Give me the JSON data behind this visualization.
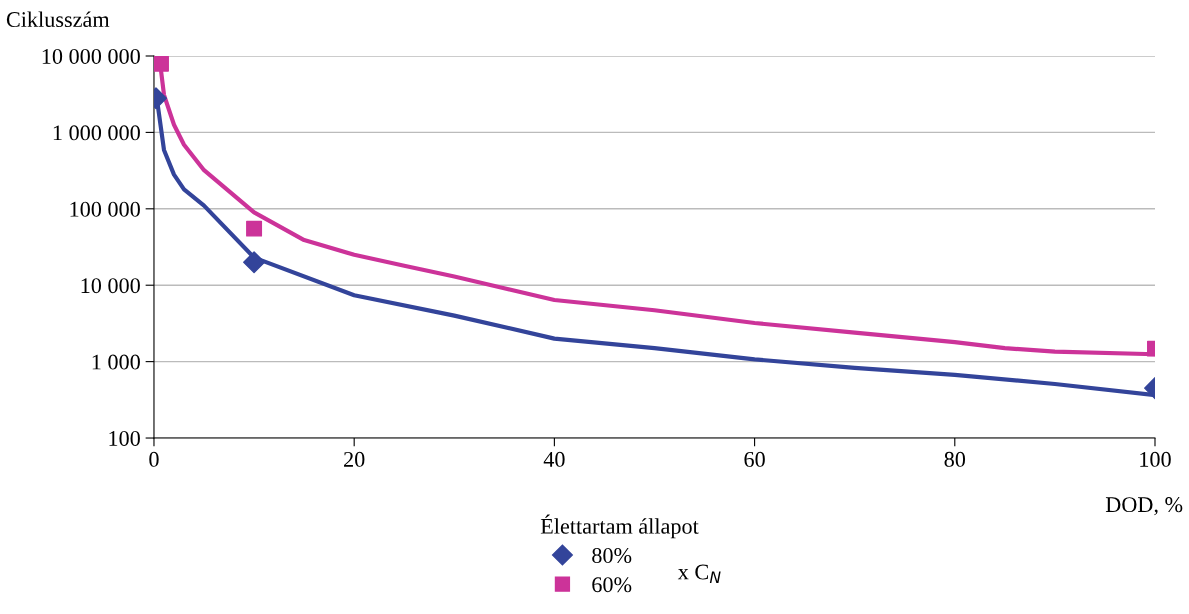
{
  "chart_data": {
    "type": "scatter",
    "ylabel": "Ciklusszám",
    "xlabel": "DOD, %",
    "legend_title": "Élettartam állapot",
    "annotations": [
      "x C$_{N}$"
    ],
    "log": "y",
    "grid": "y",
    "legend": "bottom left",
    "xlim": [
      0,
      100
    ],
    "xticks": [
      0,
      20,
      40,
      60,
      80,
      100
    ],
    "ylim": [
      100,
      10000000
    ],
    "yticks": [
      {
        "value": 100,
        "label": "100"
      },
      {
        "value": 1000,
        "label": "1 000"
      },
      {
        "value": 10000,
        "label": "10 000"
      },
      {
        "value": 100000,
        "label": "100 000"
      },
      {
        "value": 1000000,
        "label": "1 000 000"
      },
      {
        "value": 10000000,
        "label": "10 000 000"
      }
    ],
    "series": [
      {
        "name": "80%",
        "marker": "diamond",
        "color": "#33449a",
        "x": [
          0.2,
          10,
          100
        ],
        "values": [
          2800000,
          20000,
          450
        ]
      },
      {
        "name": "60%",
        "marker": "square",
        "color": "#cc3399",
        "x": [
          0.7,
          10,
          100
        ],
        "values": [
          7900000,
          55000,
          1480
        ]
      },
      {
        "type": "line",
        "color": "#33449a",
        "x": [
          0.3,
          1,
          2,
          3,
          5,
          10,
          20,
          30,
          40,
          50,
          60,
          70,
          80,
          90,
          100
        ],
        "values": [
          2700000,
          590000,
          280000,
          180000,
          110000,
          23000,
          7400,
          4000,
          2000,
          1500,
          1070,
          830,
          670,
          510,
          365
        ]
      },
      {
        "type": "line",
        "color": "#cc3399",
        "x": [
          0.6,
          1,
          2,
          3,
          5,
          10,
          15,
          20,
          25,
          30,
          40,
          50,
          60,
          70,
          80,
          85,
          90,
          100
        ],
        "values": [
          8300000,
          3100000,
          1260000,
          690000,
          320000,
          90000,
          39000,
          25000,
          18000,
          13000,
          6400,
          4700,
          3200,
          2400,
          1800,
          1500,
          1350,
          1250
        ]
      }
    ]
  }
}
